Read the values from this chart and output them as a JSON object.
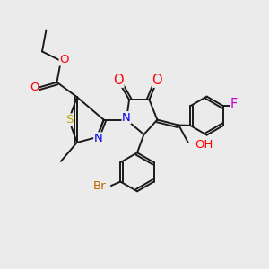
{
  "bg_color": "#ebebeb",
  "bond_color": "#1a1a1a",
  "bond_width": 1.4,
  "atom_colors": {
    "O": "#ff0000",
    "N": "#0000ee",
    "S": "#bbaa00",
    "F": "#cc00cc",
    "Br": "#bb6600",
    "C": "#1a1a1a"
  },
  "font_size": 8.5
}
